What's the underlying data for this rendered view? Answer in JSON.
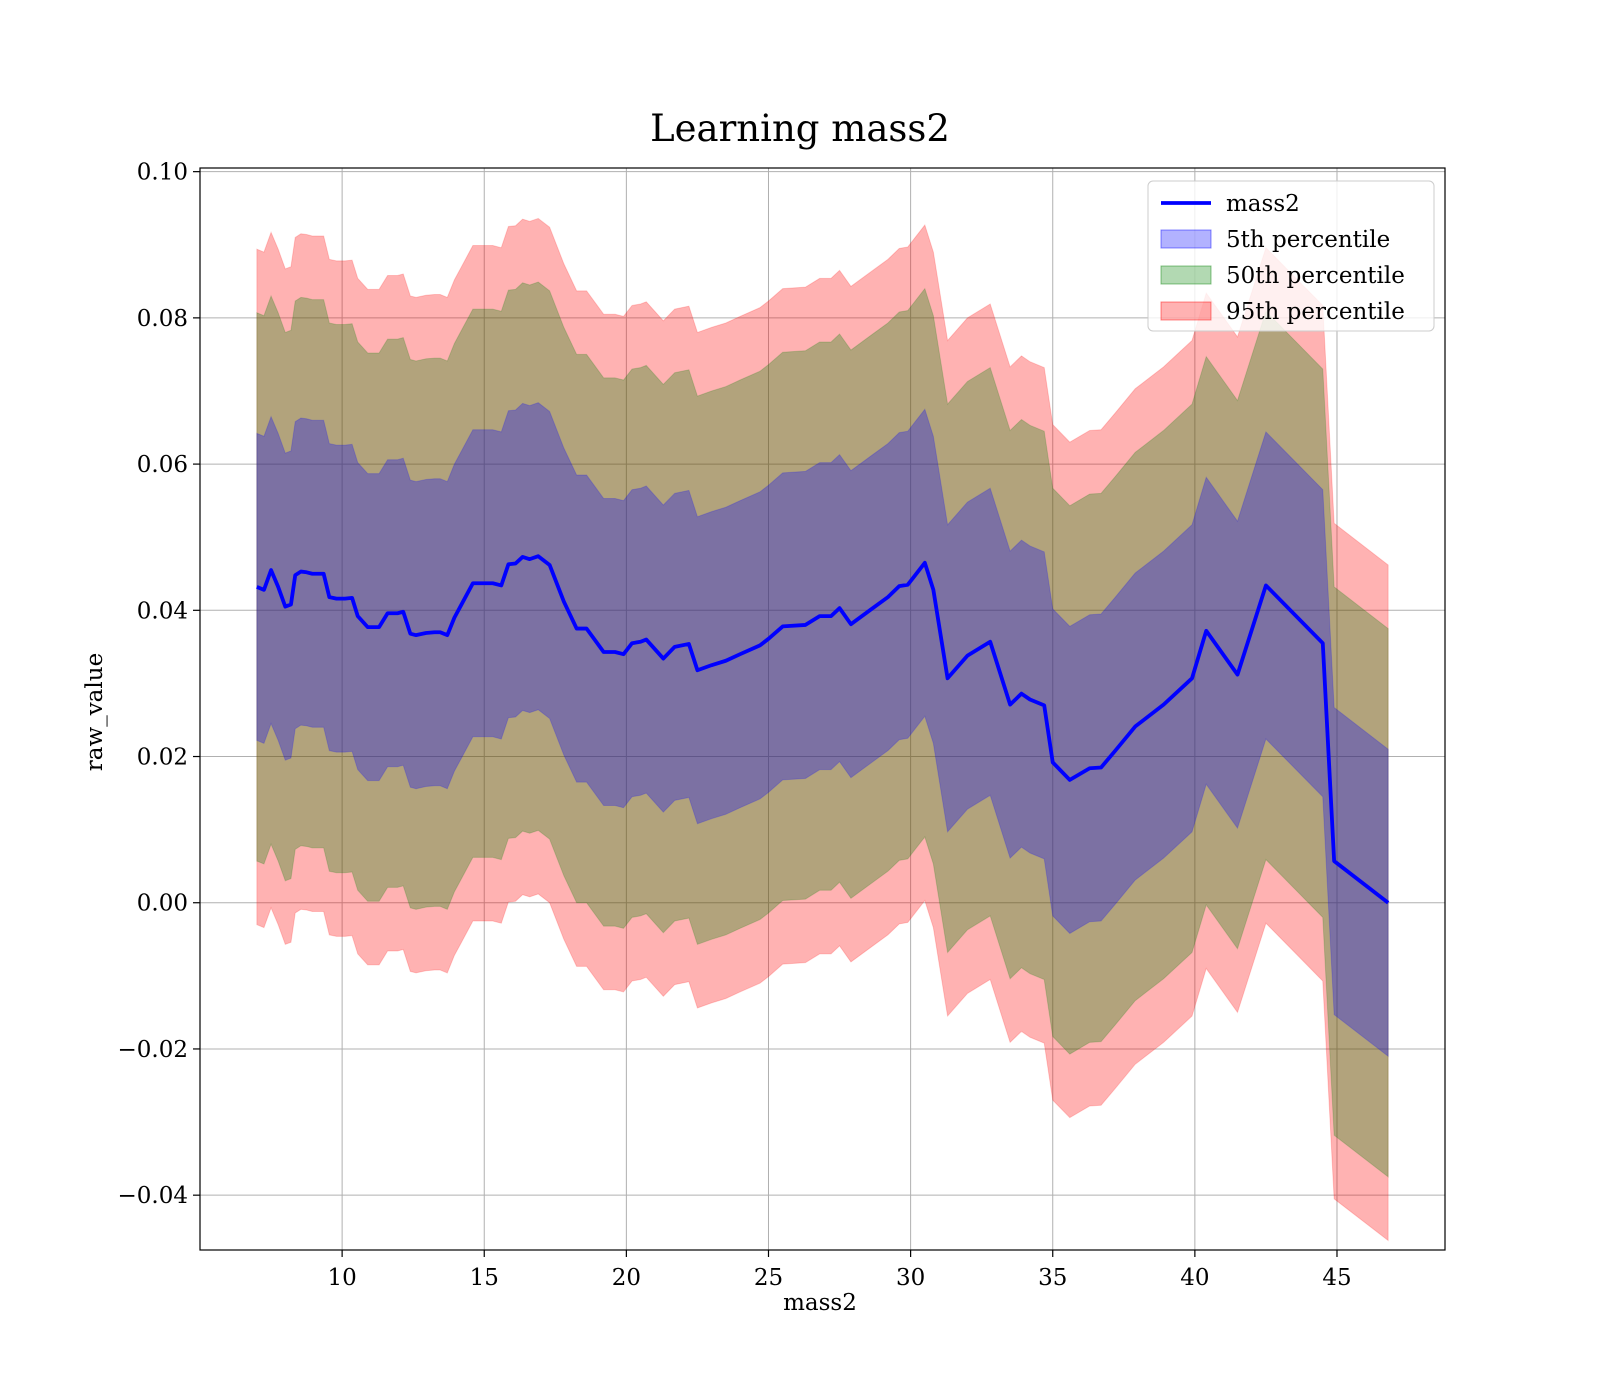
{
  "chart_data": {
    "type": "line",
    "title": "Learning mass2",
    "xlabel": "mass2",
    "ylabel": "raw_value",
    "xlim": [
      5.0,
      48.8
    ],
    "ylim": [
      -0.0475,
      0.1005
    ],
    "xticks": [
      10,
      15,
      20,
      25,
      30,
      35,
      40,
      45
    ],
    "yticks": [
      -0.04,
      -0.02,
      0.0,
      0.02,
      0.04,
      0.06,
      0.08,
      0.1
    ],
    "ytick_labels": [
      "−0.04",
      "−0.02",
      "0.00",
      "0.02",
      "0.04",
      "0.06",
      "0.08",
      "0.10"
    ],
    "grid": true,
    "legend_position": "top-right",
    "series": [
      {
        "name": "mass2",
        "kind": "line",
        "color": "#0000ff",
        "x": [
          7.0,
          7.25,
          7.5,
          7.75,
          8.0,
          8.2,
          8.35,
          8.55,
          8.75,
          8.95,
          9.15,
          9.35,
          9.55,
          9.8,
          10.1,
          10.35,
          10.55,
          10.9,
          11.3,
          11.6,
          11.95,
          12.15,
          12.4,
          12.6,
          12.95,
          13.25,
          13.45,
          13.7,
          13.95,
          14.2,
          14.6,
          14.9,
          15.05,
          15.3,
          15.6,
          15.85,
          16.1,
          16.35,
          16.6,
          16.9,
          17.3,
          17.8,
          18.25,
          18.6,
          19.2,
          19.6,
          19.9,
          20.2,
          20.5,
          20.7,
          21.3,
          21.7,
          22.2,
          22.5,
          23.0,
          23.5,
          24.0,
          24.7,
          25.0,
          25.5,
          26.3,
          26.8,
          27.2,
          27.5,
          27.9,
          28.6,
          29.2,
          29.6,
          29.9,
          30.1,
          30.5,
          30.8,
          31.3,
          32.0,
          32.8,
          33.5,
          33.9,
          34.2,
          34.7,
          35.0,
          35.6,
          36.3,
          36.7,
          37.2,
          37.9,
          38.9,
          39.9,
          40.4,
          41.5,
          42.5,
          44.5,
          44.9,
          46.8
        ],
        "y": [
          0.0432,
          0.0428,
          0.0455,
          0.0432,
          0.0405,
          0.0408,
          0.0448,
          0.0453,
          0.0452,
          0.045,
          0.045,
          0.045,
          0.0418,
          0.0416,
          0.0416,
          0.0417,
          0.0392,
          0.0377,
          0.0377,
          0.0396,
          0.0396,
          0.0398,
          0.0368,
          0.0366,
          0.0369,
          0.037,
          0.037,
          0.0366,
          0.039,
          0.0408,
          0.0437,
          0.0437,
          0.0437,
          0.0437,
          0.0434,
          0.0463,
          0.0464,
          0.0473,
          0.047,
          0.0474,
          0.0462,
          0.0412,
          0.0375,
          0.0375,
          0.0343,
          0.0343,
          0.034,
          0.0355,
          0.0357,
          0.036,
          0.0334,
          0.035,
          0.0354,
          0.0318,
          0.0325,
          0.0331,
          0.034,
          0.0352,
          0.0361,
          0.0378,
          0.038,
          0.0392,
          0.0392,
          0.0403,
          0.0381,
          0.0401,
          0.0418,
          0.0433,
          0.0435,
          0.0445,
          0.0465,
          0.0428,
          0.0307,
          0.0338,
          0.0357,
          0.0271,
          0.0286,
          0.0278,
          0.027,
          0.0192,
          0.0168,
          0.0184,
          0.0185,
          0.0208,
          0.0241,
          0.0271,
          0.0307,
          0.0372,
          0.0312,
          0.0434,
          0.0355,
          0.0057,
          0.0
        ]
      },
      {
        "name": "5th percentile",
        "kind": "band",
        "color": "#0000ff",
        "opacity": 0.3,
        "half_width": 0.021
      },
      {
        "name": "50th percentile",
        "kind": "band",
        "color": "#008000",
        "opacity": 0.3,
        "half_width": 0.0375
      },
      {
        "name": "95th percentile",
        "kind": "band",
        "color": "#ff0000",
        "opacity": 0.3,
        "half_width": 0.0462
      }
    ]
  }
}
